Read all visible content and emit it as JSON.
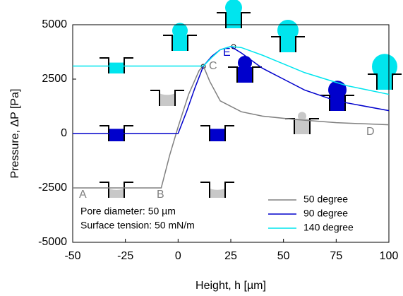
{
  "chart_data": {
    "type": "line",
    "xlabel": "Height, h [µm]",
    "ylabel": "Pressure, ΔP [Pa]",
    "xlim": [
      -50,
      100
    ],
    "ylim": [
      -5000,
      5000
    ],
    "xticks": [
      -50,
      -25,
      0,
      25,
      50,
      75,
      100
    ],
    "yticks": [
      -5000,
      -2500,
      0,
      2500,
      5000
    ],
    "legend": "lower right",
    "annotations": [
      "A",
      "B",
      "C",
      "D",
      "E",
      "Pore diameter: 50 µm",
      "Surface tension: 50 mN/m"
    ],
    "series": [
      {
        "name": "50 degree",
        "color": "#808080",
        "x": [
          -50,
          -8,
          -4,
          0,
          5,
          10,
          12,
          15,
          20,
          30,
          40,
          55,
          75,
          100
        ],
        "values": [
          -2500,
          -2500,
          -1000,
          300,
          1800,
          2900,
          3100,
          2400,
          1500,
          1000,
          800,
          650,
          500,
          400
        ]
      },
      {
        "name": "90 degree",
        "color": "#0000cc",
        "x": [
          -50,
          0,
          4,
          8,
          12,
          16,
          20,
          25,
          30,
          40,
          50,
          60,
          75,
          100
        ],
        "values": [
          0,
          0,
          1000,
          2100,
          3100,
          3550,
          3850,
          4000,
          3700,
          3000,
          2500,
          2000,
          1500,
          1050
        ]
      },
      {
        "name": "140 degree",
        "color": "#00e5ee",
        "x": [
          -50,
          12,
          16,
          20,
          25,
          30,
          40,
          50,
          60,
          70,
          80,
          90,
          100
        ],
        "values": [
          3100,
          3100,
          3500,
          3850,
          4000,
          3950,
          3600,
          3200,
          2800,
          2500,
          2200,
          2000,
          1800
        ]
      }
    ]
  }
}
